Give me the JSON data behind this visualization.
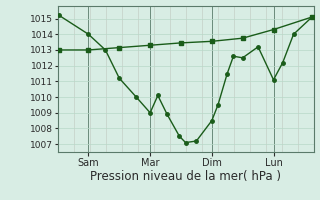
{
  "background_color": "#d8ede4",
  "grid_color_v": "#c0c8c0",
  "grid_color_h": "#b8d8c8",
  "line_color": "#1a5c1a",
  "xlabel": "Pression niveau de la mer( hPa )",
  "xlabel_fontsize": 8.5,
  "ylim": [
    1006.5,
    1015.8
  ],
  "yticks": [
    1007,
    1008,
    1009,
    1010,
    1011,
    1012,
    1013,
    1014,
    1015
  ],
  "xlim": [
    0,
    8.3
  ],
  "xtick_labels": [
    "Sam",
    "Mar",
    "Dim",
    "Lun"
  ],
  "xtick_positions": [
    1,
    3,
    5,
    7
  ],
  "vline_positions": [
    1,
    3,
    5,
    7
  ],
  "num_minor_v": 16,
  "series1_x": [
    0.05,
    1.0,
    1.55,
    2.0,
    2.55,
    3.0,
    3.25,
    3.55,
    3.95,
    4.15,
    4.5,
    5.0,
    5.2,
    5.5,
    5.7,
    6.0,
    6.5,
    7.0,
    7.3,
    7.65,
    8.25
  ],
  "series1_y": [
    1015.2,
    1014.0,
    1013.0,
    1011.2,
    1010.0,
    1009.0,
    1010.1,
    1008.9,
    1007.5,
    1007.1,
    1007.2,
    1008.5,
    1009.5,
    1011.5,
    1012.6,
    1012.5,
    1013.2,
    1011.1,
    1012.2,
    1014.0,
    1015.1
  ],
  "series2_x": [
    0.05,
    1.0,
    2.0,
    3.0,
    4.0,
    5.0,
    6.0,
    7.0,
    8.25
  ],
  "series2_y": [
    1013.0,
    1013.0,
    1013.15,
    1013.3,
    1013.45,
    1013.55,
    1013.75,
    1014.3,
    1015.1
  ],
  "marker_size": 2.5,
  "linewidth": 1.0
}
